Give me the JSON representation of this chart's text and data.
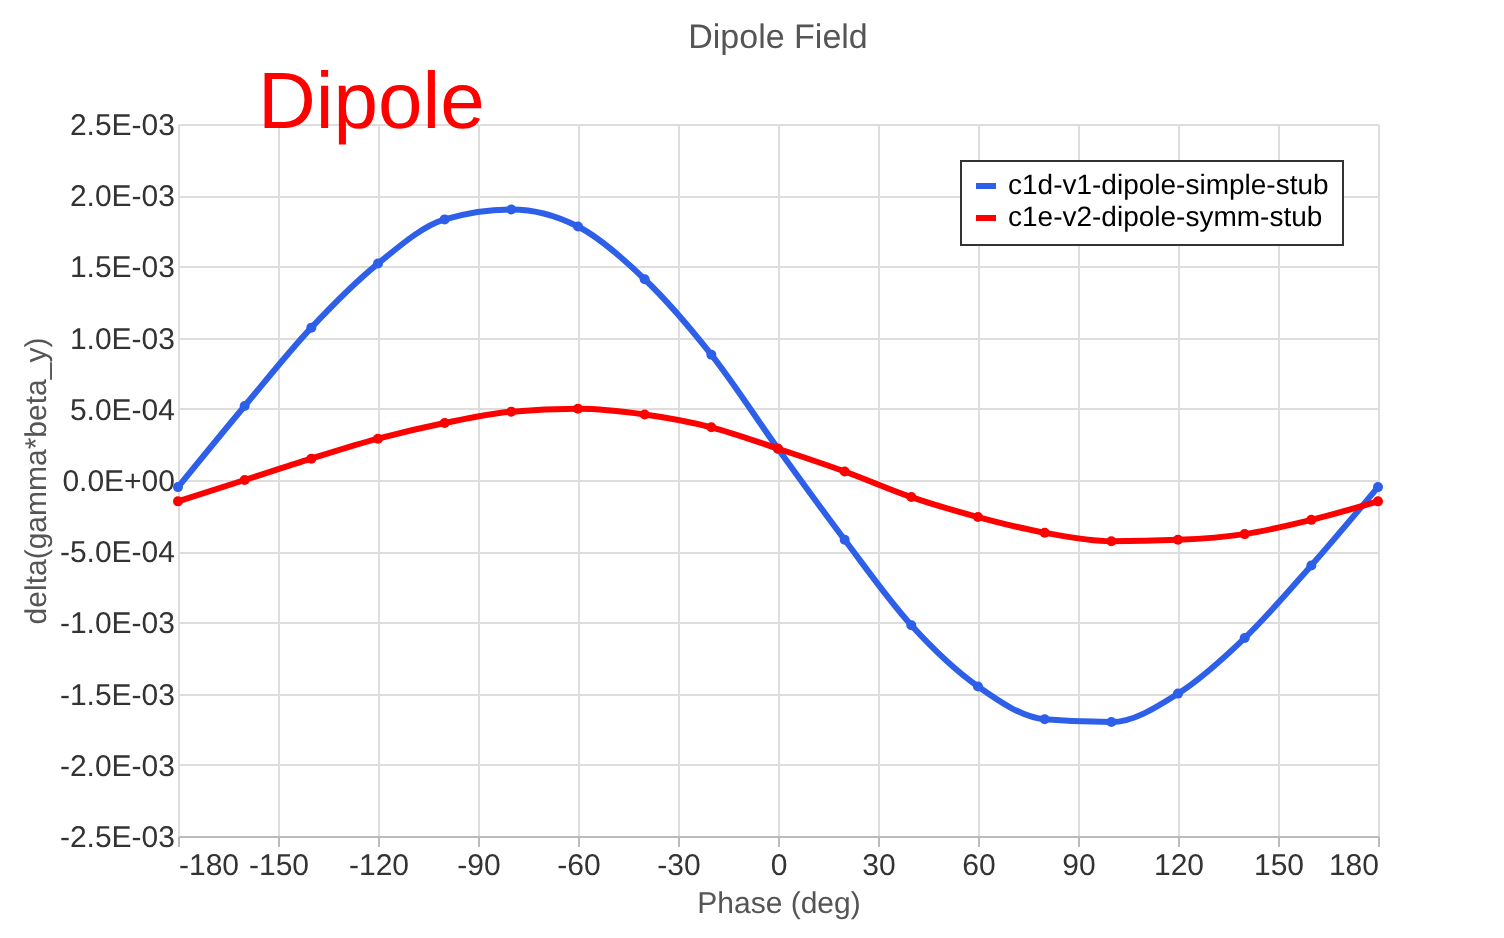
{
  "chart_data": {
    "type": "line",
    "title": "Dipole Field",
    "xlabel": "Phase (deg)",
    "ylabel": "delta(gamma*beta_y)",
    "annotations": [
      "Dipole"
    ],
    "x": [
      -180,
      -160,
      -140,
      -120,
      -100,
      -80,
      -60,
      -40,
      -20,
      0,
      20,
      40,
      60,
      80,
      100,
      120,
      140,
      160,
      180
    ],
    "series": [
      {
        "name": "c1d-v1-dipole-simple-stub",
        "color": "#2e5fe8",
        "values": [
          -5e-05,
          0.00052,
          0.00107,
          0.00152,
          0.00183,
          0.0019,
          0.00178,
          0.00141,
          0.00088,
          0.00022,
          -0.00042,
          -0.00102,
          -0.00145,
          -0.00168,
          -0.0017,
          -0.0015,
          -0.00111,
          -0.0006,
          -5e-05
        ]
      },
      {
        "name": "c1e-v2-dipole-symm-stub",
        "color": "#ff0000",
        "values": [
          -0.00015,
          0.0,
          0.00015,
          0.00029,
          0.0004,
          0.00048,
          0.0005,
          0.00046,
          0.00037,
          0.00022,
          6e-05,
          -0.00012,
          -0.00026,
          -0.00037,
          -0.00043,
          -0.00042,
          -0.00038,
          -0.00028,
          -0.00015
        ]
      }
    ],
    "xlim": [
      -180,
      180
    ],
    "xticks": [
      -180,
      -150,
      -120,
      -90,
      -60,
      -30,
      0,
      30,
      60,
      90,
      120,
      150,
      180
    ],
    "ylim": [
      -0.0025,
      0.0025
    ],
    "yticks": [
      {
        "value": -0.0025,
        "label": "-2.5E-03"
      },
      {
        "value": -0.002,
        "label": "-2.0E-03"
      },
      {
        "value": -0.0015,
        "label": "-1.5E-03"
      },
      {
        "value": -0.001,
        "label": "-1.0E-03"
      },
      {
        "value": -0.0005,
        "label": "-5.0E-04"
      },
      {
        "value": 0,
        "label": "0.0E+00"
      },
      {
        "value": 0.0005,
        "label": "5.0E-04"
      },
      {
        "value": 0.001,
        "label": "1.0E-03"
      },
      {
        "value": 0.0015,
        "label": "1.5E-03"
      },
      {
        "value": 0.002,
        "label": "2.0E-03"
      },
      {
        "value": 0.0025,
        "label": "2.5E-03"
      }
    ],
    "grid": true,
    "legend": "top right",
    "marker": "circle",
    "line_style": "solid"
  }
}
